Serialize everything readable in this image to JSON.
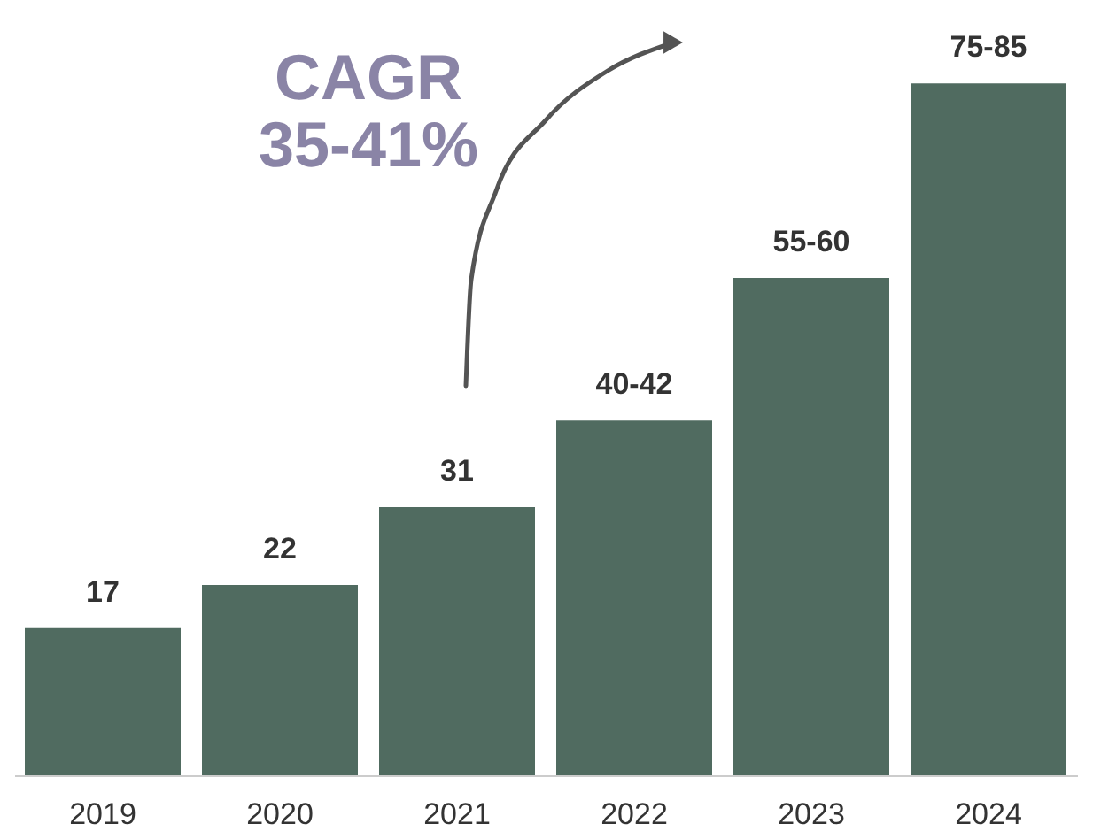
{
  "chart_data": {
    "type": "bar",
    "categories": [
      "2019",
      "2020",
      "2021",
      "2022",
      "2023",
      "2024"
    ],
    "values": [
      17,
      22,
      31,
      41,
      57.5,
      80
    ],
    "value_labels": [
      "17",
      "22",
      "31",
      "40-42",
      "55-60",
      "75-85"
    ],
    "color": "#506b60",
    "annotations": [
      "CAGR\n35-41%"
    ],
    "grid": false
  }
}
